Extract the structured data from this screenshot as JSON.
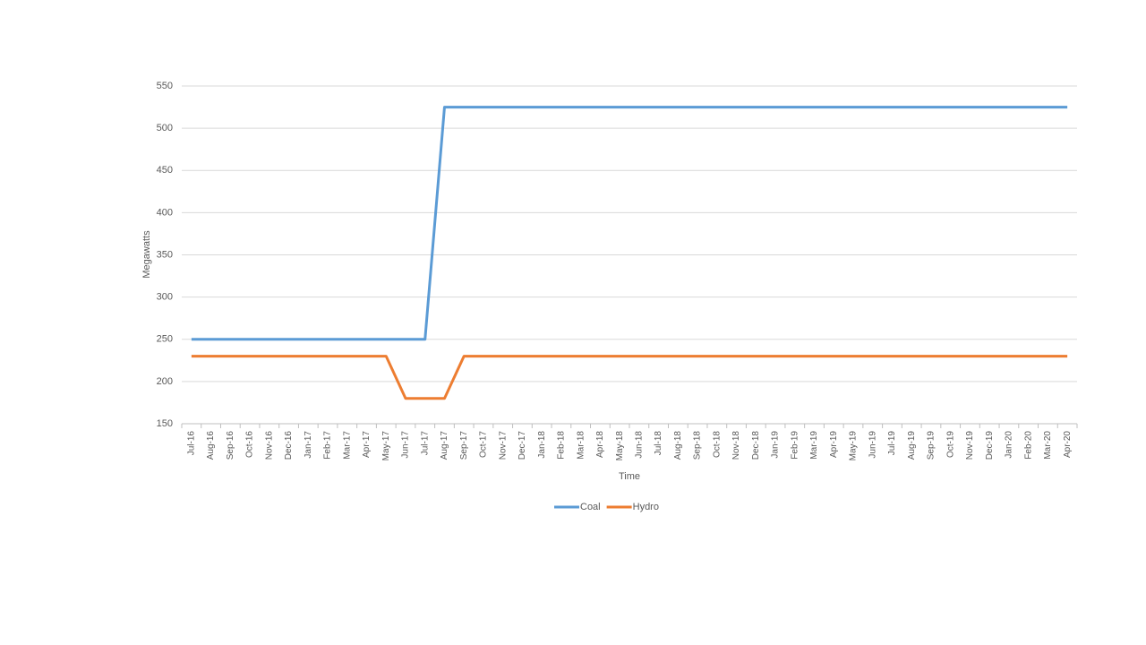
{
  "chart_data": {
    "type": "line",
    "y_label": "Megawatts",
    "x_label": "Time",
    "categories": [
      "Jul-16",
      "Aug-16",
      "Sep-16",
      "Oct-16",
      "Nov-16",
      "Dec-16",
      "Jan-17",
      "Feb-17",
      "Mar-17",
      "Apr-17",
      "May-17",
      "Jun-17",
      "Jul-17",
      "Aug-17",
      "Sep-17",
      "Oct-17",
      "Nov-17",
      "Dec-17",
      "Jan-18",
      "Feb-18",
      "Mar-18",
      "Apr-18",
      "May-18",
      "Jun-18",
      "Jul-18",
      "Aug-18",
      "Sep-18",
      "Oct-18",
      "Nov-18",
      "Dec-18",
      "Jan-19",
      "Feb-19",
      "Mar-19",
      "Apr-19",
      "May-19",
      "Jun-19",
      "Jul-19",
      "Aug-19",
      "Sep-19",
      "Oct-19",
      "Nov-19",
      "Dec-19",
      "Jan-20",
      "Feb-20",
      "Mar-20",
      "Apr-20"
    ],
    "series": [
      {
        "name": "Coal",
        "color": "#5b9bd5",
        "values": [
          250,
          250,
          250,
          250,
          250,
          250,
          250,
          250,
          250,
          250,
          250,
          250,
          250,
          525,
          525,
          525,
          525,
          525,
          525,
          525,
          525,
          525,
          525,
          525,
          525,
          525,
          525,
          525,
          525,
          525,
          525,
          525,
          525,
          525,
          525,
          525,
          525,
          525,
          525,
          525,
          525,
          525,
          525,
          525,
          525,
          525
        ]
      },
      {
        "name": "Hydro",
        "color": "#ed7d31",
        "values": [
          230,
          230,
          230,
          230,
          230,
          230,
          230,
          230,
          230,
          230,
          230,
          180,
          180,
          180,
          230,
          230,
          230,
          230,
          230,
          230,
          230,
          230,
          230,
          230,
          230,
          230,
          230,
          230,
          230,
          230,
          230,
          230,
          230,
          230,
          230,
          230,
          230,
          230,
          230,
          230,
          230,
          230,
          230,
          230,
          230,
          230
        ]
      }
    ],
    "ylim": [
      150,
      550
    ],
    "yticks": [
      150,
      200,
      250,
      300,
      350,
      400,
      450,
      500,
      550
    ],
    "grid": true
  }
}
